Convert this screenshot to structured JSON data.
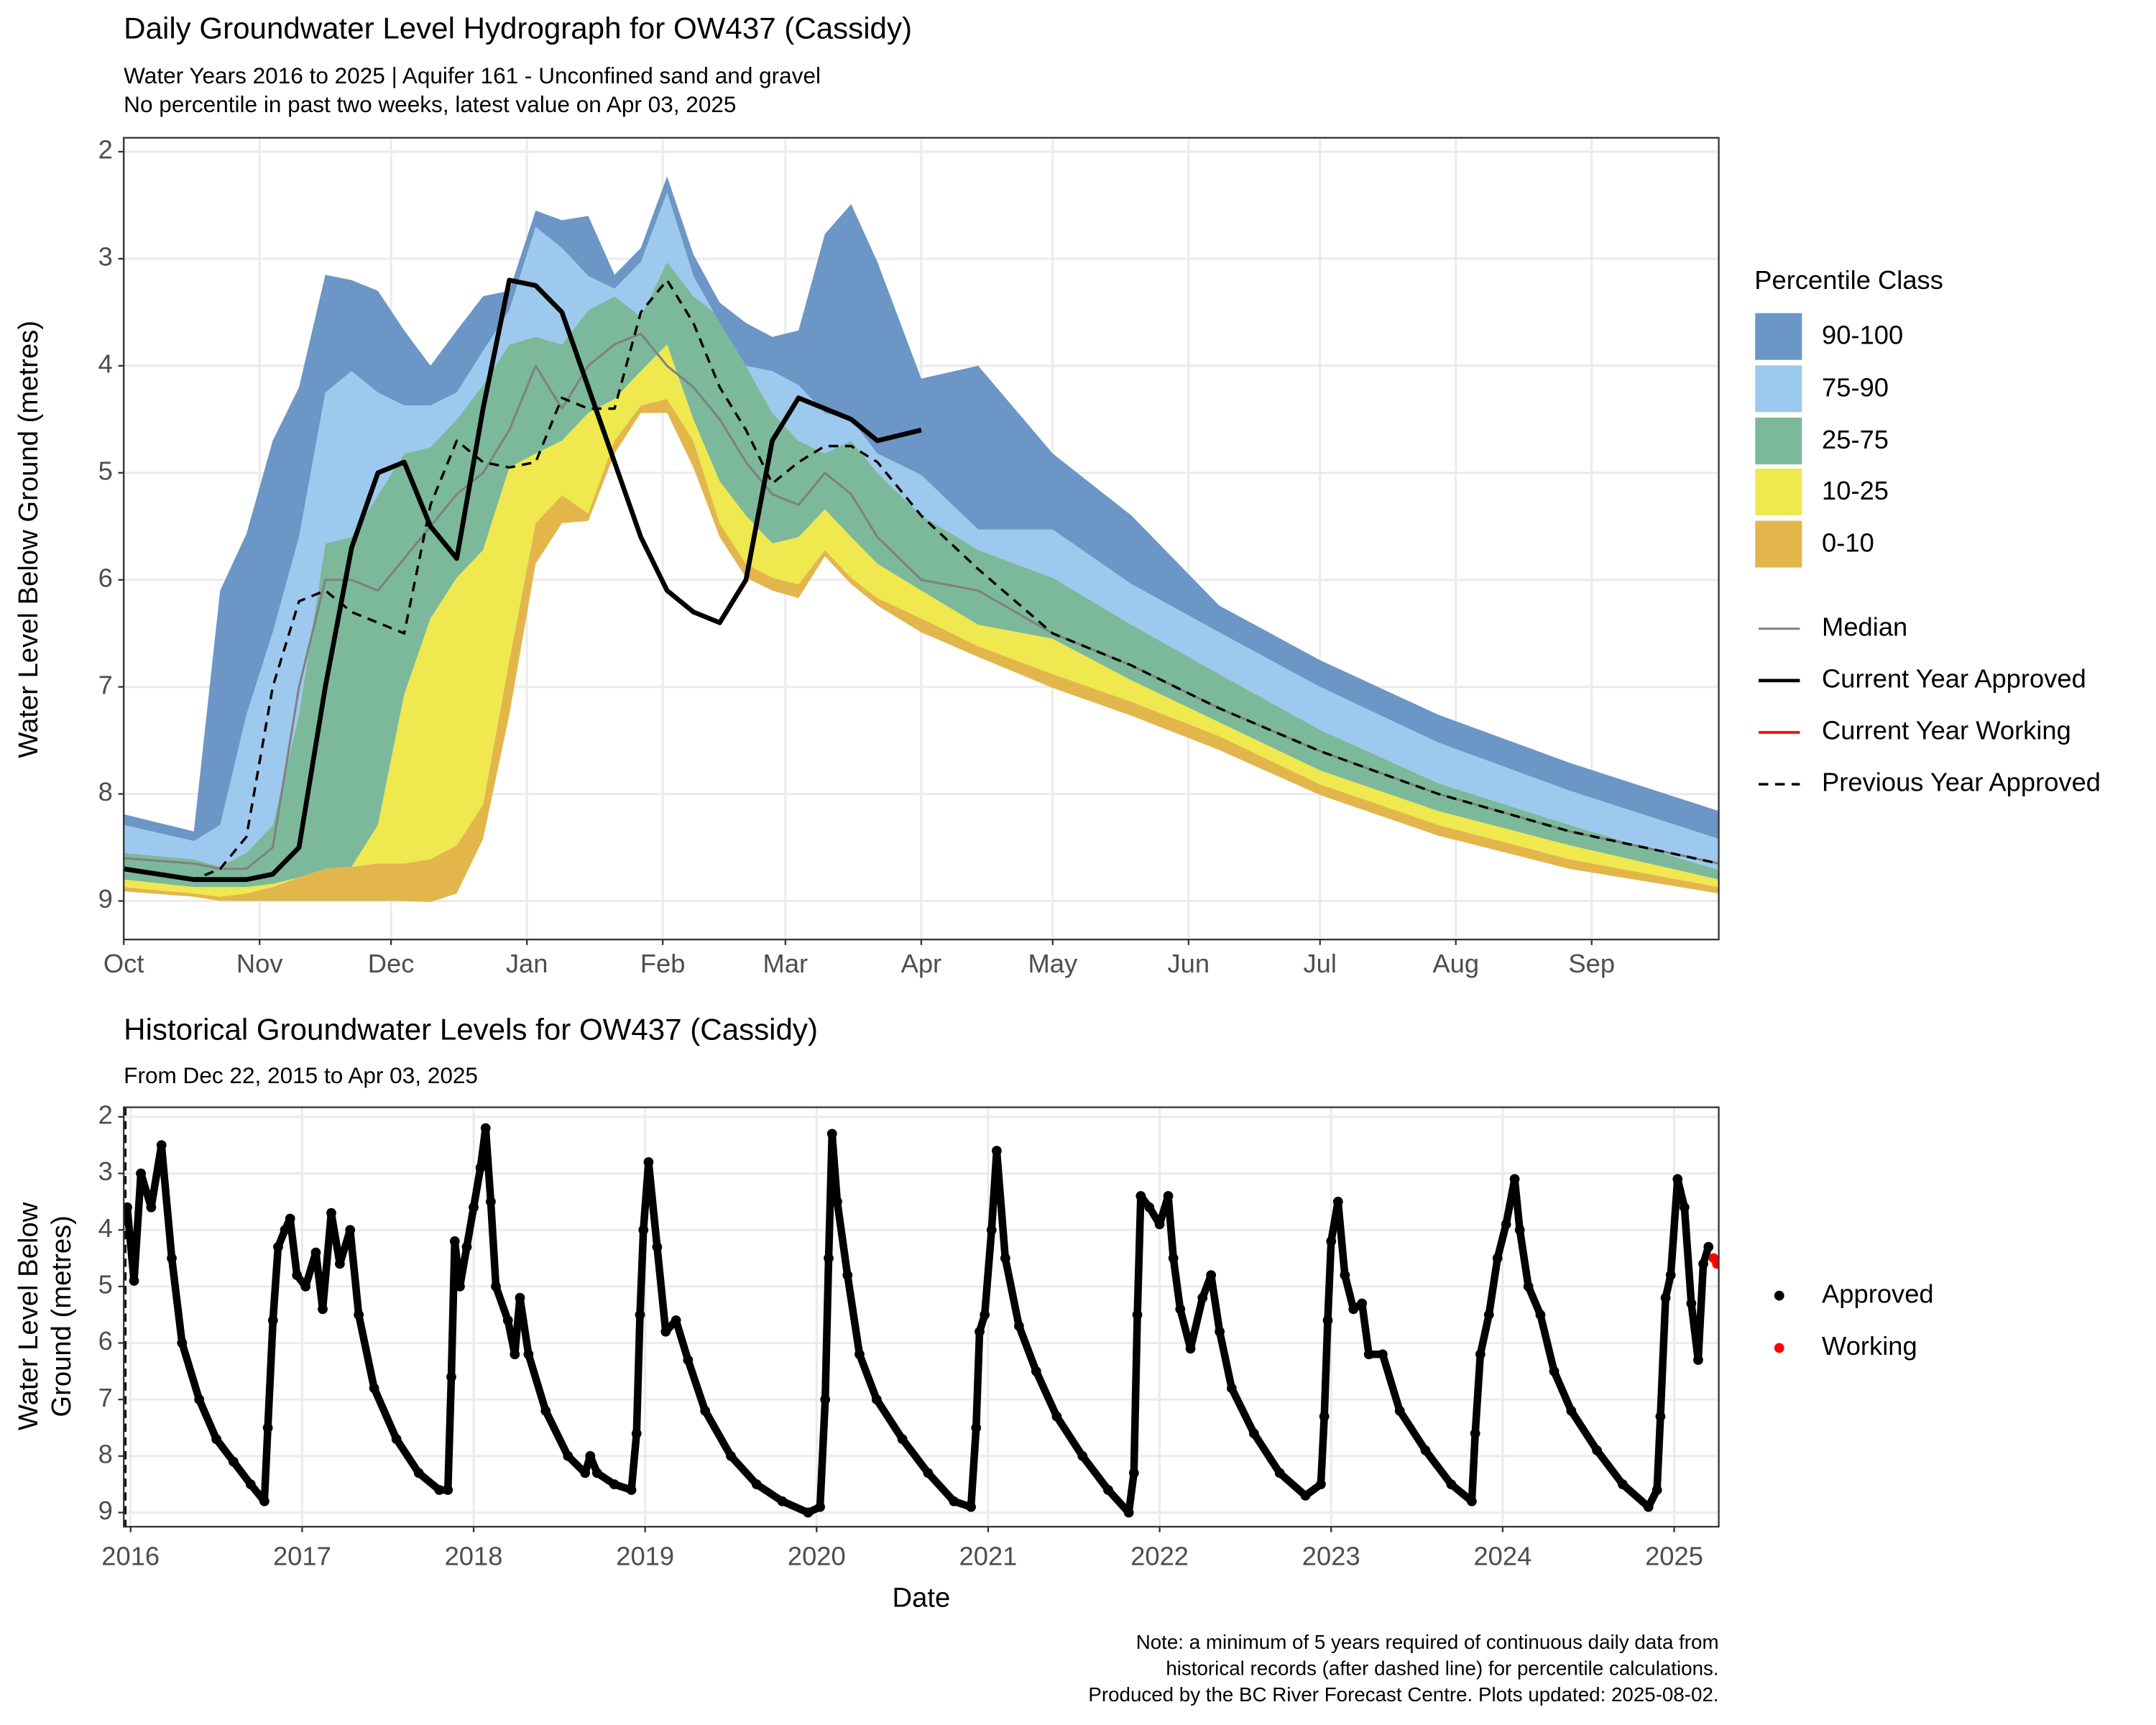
{
  "chart_data": [
    {
      "type": "area",
      "title": "Daily Groundwater Level Hydrograph for OW437 (Cassidy)",
      "subtitle": [
        "Water Years 2016 to 2025 | Aquifer 161 - Unconfined sand and gravel",
        "No percentile in past two weeks, latest value on Apr 03, 2025"
      ],
      "ylabel": "Water Level Below Ground (metres)",
      "x": [
        0,
        16,
        22,
        28,
        34,
        40,
        46,
        52,
        58,
        64,
        70,
        76,
        82,
        88,
        94,
        100,
        106,
        112,
        118,
        124,
        130,
        136,
        142,
        148,
        154,
        160,
        166,
        172,
        182,
        195,
        212,
        230,
        250,
        273,
        300,
        330,
        364
      ],
      "xlim": [
        0,
        364
      ],
      "xticks": [
        {
          "value": 0,
          "label": "Oct"
        },
        {
          "value": 31,
          "label": "Nov"
        },
        {
          "value": 61,
          "label": "Dec"
        },
        {
          "value": 92,
          "label": "Jan"
        },
        {
          "value": 123,
          "label": "Feb"
        },
        {
          "value": 151,
          "label": "Mar"
        },
        {
          "value": 182,
          "label": "Apr"
        },
        {
          "value": 212,
          "label": "May"
        },
        {
          "value": 243,
          "label": "Jun"
        },
        {
          "value": 273,
          "label": "Jul"
        },
        {
          "value": 304,
          "label": "Aug"
        },
        {
          "value": 335,
          "label": "Sep"
        }
      ],
      "ylim": [
        9.36,
        1.87
      ],
      "yticks": [
        2,
        3,
        4,
        5,
        6,
        7,
        8,
        9
      ],
      "grid": true,
      "legend_title": "Percentile Class",
      "floor": [
        8.91,
        8.96,
        9.0,
        9.0,
        9.0,
        9.0,
        9.0,
        9.0,
        9.0,
        9.0,
        9.01,
        8.93,
        8.42,
        7.26,
        5.85,
        5.47,
        5.45,
        4.82,
        4.44,
        4.44,
        4.95,
        5.6,
        5.98,
        6.1,
        6.17,
        5.78,
        6.04,
        6.24,
        6.49,
        6.72,
        7.01,
        7.27,
        7.59,
        8.01,
        8.39,
        8.7,
        8.93
      ],
      "bands": [
        {
          "name": "0-10",
          "color": "#e3b64c",
          "values": [
            8.87,
            8.93,
            8.96,
            8.93,
            8.87,
            8.78,
            8.7,
            8.68,
            8.65,
            8.65,
            8.61,
            8.48,
            8.1,
            6.75,
            5.47,
            5.21,
            5.38,
            4.7,
            4.37,
            4.31,
            4.7,
            5.47,
            5.85,
            5.98,
            6.04,
            5.72,
            5.98,
            6.17,
            6.36,
            6.62,
            6.88,
            7.14,
            7.46,
            7.91,
            8.29,
            8.61,
            8.87
          ]
        },
        {
          "name": "10-25",
          "color": "#efe84e",
          "values": [
            8.8,
            8.87,
            8.87,
            8.87,
            8.84,
            8.78,
            8.7,
            8.68,
            8.29,
            7.07,
            6.36,
            5.98,
            5.72,
            4.95,
            4.82,
            4.7,
            4.44,
            4.31,
            4.05,
            3.8,
            4.5,
            5.08,
            5.4,
            5.66,
            5.6,
            5.34,
            5.6,
            5.85,
            6.1,
            6.42,
            6.55,
            6.94,
            7.33,
            7.78,
            8.16,
            8.48,
            8.8
          ]
        },
        {
          "name": "25-75",
          "color": "#7cb99b",
          "values": [
            8.55,
            8.61,
            8.68,
            8.55,
            8.29,
            7.26,
            5.66,
            5.6,
            5.21,
            4.82,
            4.76,
            4.5,
            4.18,
            3.8,
            3.73,
            3.8,
            3.48,
            3.35,
            3.54,
            3.03,
            3.35,
            3.54,
            4.0,
            4.44,
            4.7,
            4.82,
            4.7,
            5.0,
            5.4,
            5.72,
            5.98,
            6.42,
            6.88,
            7.4,
            7.9,
            8.29,
            8.71
          ]
        },
        {
          "name": "75-90",
          "color": "#9ec9ee",
          "values": [
            8.29,
            8.44,
            8.29,
            7.26,
            6.49,
            5.6,
            4.25,
            4.05,
            4.25,
            4.37,
            4.37,
            4.25,
            3.86,
            3.48,
            2.7,
            2.9,
            3.16,
            3.28,
            3.03,
            2.38,
            3.16,
            3.6,
            4.0,
            4.05,
            4.18,
            4.44,
            4.5,
            4.82,
            5.02,
            5.53,
            5.53,
            6.04,
            6.49,
            7.0,
            7.52,
            7.97,
            8.42
          ]
        },
        {
          "name": "90-100",
          "color": "#6b96c6",
          "values": [
            8.19,
            8.35,
            6.1,
            5.57,
            4.7,
            4.2,
            3.15,
            3.2,
            3.3,
            3.67,
            4.0,
            3.67,
            3.35,
            3.3,
            2.55,
            2.64,
            2.6,
            3.15,
            2.9,
            2.23,
            2.96,
            3.41,
            3.6,
            3.73,
            3.67,
            2.77,
            2.49,
            3.03,
            4.12,
            4.0,
            4.82,
            5.4,
            6.24,
            6.75,
            7.26,
            7.71,
            8.16
          ]
        }
      ],
      "series": [
        {
          "name": "Median",
          "color": "#808080",
          "linewidth": 1.6,
          "dash": false,
          "values": [
            8.6,
            8.65,
            8.7,
            8.7,
            8.5,
            7.0,
            6.0,
            6.0,
            6.1,
            5.8,
            5.5,
            5.2,
            5.0,
            4.6,
            4.0,
            4.4,
            4.0,
            3.8,
            3.7,
            4.0,
            4.2,
            4.5,
            4.9,
            5.2,
            5.3,
            5.0,
            5.2,
            5.6,
            6.0,
            6.1,
            6.5,
            6.8,
            7.2,
            7.6,
            8.0,
            8.35,
            8.65
          ]
        },
        {
          "name": "Current Year Approved",
          "color": "#000000",
          "linewidth": 3.5,
          "dash": false,
          "values": [
            8.7,
            8.8,
            8.8,
            8.8,
            8.75,
            8.5,
            7.0,
            5.7,
            5.0,
            4.9,
            5.5,
            5.8,
            4.4,
            3.2,
            3.25,
            3.5,
            4.2,
            4.9,
            5.6,
            6.1,
            6.3,
            6.4,
            6.0,
            4.7,
            4.3,
            4.4,
            4.5,
            4.7,
            4.6,
            null,
            null,
            null,
            null,
            null,
            null,
            null,
            null
          ]
        },
        {
          "name": "Current Year Working",
          "color": "#ff0000",
          "linewidth": 2,
          "dash": false,
          "values": [
            null,
            null,
            null,
            null,
            null,
            null,
            null,
            null,
            null,
            null,
            null,
            null,
            null,
            null,
            null,
            null,
            null,
            null,
            null,
            null,
            null,
            null,
            null,
            null,
            null,
            null,
            null,
            null,
            null,
            null,
            null,
            null,
            null,
            null,
            null,
            null,
            null
          ]
        },
        {
          "name": "Previous Year Approved",
          "color": "#000000",
          "linewidth": 1.8,
          "dash": true,
          "values": [
            8.7,
            8.8,
            8.7,
            8.4,
            7.0,
            6.2,
            6.1,
            6.3,
            6.4,
            6.5,
            5.3,
            4.7,
            4.9,
            4.95,
            4.9,
            4.3,
            4.4,
            4.4,
            3.5,
            3.2,
            3.6,
            4.2,
            4.6,
            5.1,
            4.9,
            4.75,
            4.75,
            4.9,
            5.4,
            5.9,
            6.5,
            6.8,
            7.2,
            7.6,
            8.0,
            8.35,
            8.65
          ]
        }
      ]
    },
    {
      "type": "scatter",
      "title": "Historical Groundwater Levels for OW437 (Cassidy)",
      "subtitle": "From Dec 22, 2015 to Apr 03, 2025",
      "ylabel": [
        "Water Level Below",
        "Ground (metres)"
      ],
      "xlabel": "Date",
      "xlim": [
        2015.96,
        2025.26
      ],
      "xticks": [
        2016,
        2017,
        2018,
        2019,
        2020,
        2021,
        2022,
        2023,
        2024,
        2025
      ],
      "ylim": [
        9.25,
        1.83
      ],
      "yticks": [
        2,
        3,
        4,
        5,
        6,
        7,
        8,
        9
      ],
      "grid": true,
      "cutoff": 2015.97,
      "series": [
        {
          "name": "Approved",
          "color": "#000000",
          "x": [
            2015.98,
            2016.02,
            2016.06,
            2016.12,
            2016.18,
            2016.24,
            2016.3,
            2016.4,
            2016.5,
            2016.6,
            2016.7,
            2016.78,
            2016.8,
            2016.83,
            2016.86,
            2016.9,
            2016.93,
            2016.97,
            2017.02,
            2017.08,
            2017.12,
            2017.17,
            2017.22,
            2017.28,
            2017.33,
            2017.42,
            2017.55,
            2017.68,
            2017.8,
            2017.85,
            2017.87,
            2017.89,
            2017.92,
            2017.96,
            2018.0,
            2018.04,
            2018.07,
            2018.1,
            2018.13,
            2018.2,
            2018.24,
            2018.27,
            2018.32,
            2018.42,
            2018.55,
            2018.65,
            2018.68,
            2018.72,
            2018.82,
            2018.92,
            2018.95,
            2018.97,
            2018.99,
            2019.02,
            2019.07,
            2019.12,
            2019.18,
            2019.25,
            2019.35,
            2019.5,
            2019.65,
            2019.8,
            2019.95,
            2020.02,
            2020.05,
            2020.07,
            2020.09,
            2020.12,
            2020.18,
            2020.25,
            2020.35,
            2020.5,
            2020.65,
            2020.8,
            2020.9,
            2020.93,
            2020.95,
            2020.98,
            2021.02,
            2021.05,
            2021.1,
            2021.18,
            2021.28,
            2021.4,
            2021.55,
            2021.7,
            2021.82,
            2021.85,
            2021.87,
            2021.89,
            2021.94,
            2022.0,
            2022.05,
            2022.08,
            2022.12,
            2022.18,
            2022.25,
            2022.3,
            2022.35,
            2022.42,
            2022.55,
            2022.7,
            2022.85,
            2022.94,
            2022.96,
            2022.98,
            2023.0,
            2023.04,
            2023.08,
            2023.13,
            2023.18,
            2023.22,
            2023.3,
            2023.4,
            2023.55,
            2023.7,
            2023.82,
            2023.84,
            2023.87,
            2023.92,
            2023.97,
            2024.02,
            2024.07,
            2024.1,
            2024.15,
            2024.22,
            2024.3,
            2024.4,
            2024.55,
            2024.7,
            2024.85,
            2024.9,
            2024.92,
            2024.95,
            2024.98,
            2025.02,
            2025.06,
            2025.1,
            2025.14,
            2025.17,
            2025.2
          ],
          "values": [
            3.6,
            4.9,
            3.0,
            3.6,
            2.5,
            4.5,
            6.0,
            7.0,
            7.7,
            8.1,
            8.5,
            8.8,
            7.5,
            5.6,
            4.3,
            4.0,
            3.8,
            4.8,
            5.0,
            4.4,
            5.4,
            3.7,
            4.6,
            4.0,
            5.5,
            6.8,
            7.7,
            8.3,
            8.6,
            8.6,
            6.6,
            4.2,
            5.0,
            4.3,
            3.6,
            2.9,
            2.2,
            3.5,
            5.0,
            5.6,
            6.2,
            5.2,
            6.2,
            7.2,
            8.0,
            8.3,
            8.0,
            8.3,
            8.5,
            8.6,
            7.6,
            5.5,
            4.0,
            2.8,
            4.3,
            5.8,
            5.6,
            6.3,
            7.2,
            8.0,
            8.5,
            8.8,
            9.0,
            8.9,
            7.0,
            4.5,
            2.3,
            3.5,
            4.8,
            6.2,
            7.0,
            7.7,
            8.3,
            8.8,
            8.9,
            7.5,
            5.8,
            5.5,
            4.0,
            2.6,
            4.5,
            5.7,
            6.5,
            7.3,
            8.0,
            8.6,
            9.0,
            8.3,
            5.5,
            3.4,
            3.6,
            3.9,
            3.4,
            4.5,
            5.4,
            6.1,
            5.2,
            4.8,
            5.8,
            6.8,
            7.6,
            8.3,
            8.7,
            8.5,
            7.3,
            5.6,
            4.2,
            3.5,
            4.8,
            5.4,
            5.3,
            6.2,
            6.2,
            7.2,
            7.9,
            8.5,
            8.8,
            7.6,
            6.2,
            5.5,
            4.5,
            3.9,
            3.1,
            4.0,
            5.0,
            5.5,
            6.5,
            7.2,
            7.9,
            8.5,
            8.9,
            8.6,
            7.3,
            5.2,
            4.8,
            3.1,
            3.6,
            5.3,
            6.3,
            4.6,
            4.3
          ]
        },
        {
          "name": "Working",
          "color": "#ff0000",
          "x": [
            2025.23,
            2025.25
          ],
          "values": [
            4.5,
            4.6
          ]
        }
      ]
    }
  ],
  "notes": [
    "Note: a minimum of 5 years required of continuous daily data from",
    "historical records (after dashed line) for percentile calculations.",
    "Produced by the BC River Forecast Centre. Plots updated: 2025-08-02."
  ]
}
